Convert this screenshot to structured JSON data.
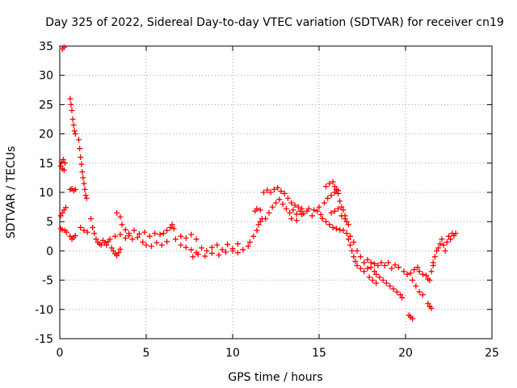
{
  "chart_data": {
    "type": "scatter",
    "title": "Day 325 of 2022, Sidereal Day-to-day VTEC variation (SDTVAR) for receiver cn19",
    "xlabel": "GPS time / hours",
    "ylabel": "SDTVAR / TECUs",
    "xlim": [
      0,
      25
    ],
    "ylim": [
      -15,
      35
    ],
    "xticks": [
      0,
      5,
      10,
      15,
      20,
      25
    ],
    "yticks": [
      -15,
      -10,
      -5,
      0,
      5,
      10,
      15,
      20,
      25,
      30,
      35
    ],
    "xtick_labels": [
      "0",
      "5",
      "10",
      "15",
      "20",
      "25"
    ],
    "ytick_labels": [
      "-15",
      "-10",
      "-5",
      "0",
      "5",
      "10",
      "15",
      "20",
      "25",
      "30",
      "35"
    ],
    "grid": true,
    "legend": "none",
    "marker": "plus",
    "color": "#ff0000",
    "series": [
      {
        "name": "SDTVAR",
        "points": [
          [
            0.05,
            14.5
          ],
          [
            0.1,
            15.2
          ],
          [
            0.15,
            14.0
          ],
          [
            0.2,
            15.6
          ],
          [
            0.25,
            13.8
          ],
          [
            0.3,
            15.0
          ],
          [
            0.15,
            34.5
          ],
          [
            0.25,
            34.8
          ],
          [
            0.05,
            6.0
          ],
          [
            0.15,
            6.5
          ],
          [
            0.25,
            7.0
          ],
          [
            0.35,
            7.4
          ],
          [
            0.05,
            3.8
          ],
          [
            0.15,
            3.6
          ],
          [
            0.3,
            3.5
          ],
          [
            0.4,
            3.2
          ],
          [
            0.6,
            26.0
          ],
          [
            0.65,
            25.0
          ],
          [
            0.7,
            24.0
          ],
          [
            0.75,
            22.5
          ],
          [
            0.8,
            21.5
          ],
          [
            0.85,
            20.5
          ],
          [
            0.9,
            20.0
          ],
          [
            1.1,
            19.0
          ],
          [
            1.15,
            17.5
          ],
          [
            1.2,
            16.0
          ],
          [
            1.25,
            14.8
          ],
          [
            1.3,
            13.5
          ],
          [
            1.35,
            12.5
          ],
          [
            1.4,
            11.5
          ],
          [
            1.45,
            10.5
          ],
          [
            1.5,
            9.5
          ],
          [
            1.55,
            9.0
          ],
          [
            0.6,
            10.5
          ],
          [
            0.7,
            10.6
          ],
          [
            0.8,
            10.3
          ],
          [
            0.9,
            10.5
          ],
          [
            0.6,
            2.5
          ],
          [
            0.7,
            2.0
          ],
          [
            0.8,
            2.3
          ],
          [
            0.9,
            2.6
          ],
          [
            1.2,
            4.0
          ],
          [
            1.4,
            3.5
          ],
          [
            1.6,
            3.2
          ],
          [
            1.8,
            5.5
          ],
          [
            1.9,
            4.0
          ],
          [
            2.0,
            3.0
          ],
          [
            2.1,
            2.0
          ],
          [
            2.2,
            1.5
          ],
          [
            2.3,
            1.2
          ],
          [
            2.4,
            1.0
          ],
          [
            2.5,
            1.8
          ],
          [
            2.6,
            1.4
          ],
          [
            2.7,
            1.0
          ],
          [
            2.8,
            1.6
          ],
          [
            2.9,
            2.0
          ],
          [
            3.0,
            0.5
          ],
          [
            3.1,
            0.0
          ],
          [
            3.2,
            -0.5
          ],
          [
            3.3,
            -0.8
          ],
          [
            3.4,
            -0.3
          ],
          [
            3.5,
            0.3
          ],
          [
            3.3,
            6.5
          ],
          [
            3.5,
            5.8
          ],
          [
            3.6,
            4.5
          ],
          [
            3.8,
            3.6
          ],
          [
            4.0,
            3.0
          ],
          [
            3.2,
            2.5
          ],
          [
            3.5,
            2.8
          ],
          [
            3.8,
            2.2
          ],
          [
            4.0,
            2.6
          ],
          [
            4.2,
            2.0
          ],
          [
            4.5,
            2.3
          ],
          [
            4.8,
            1.5
          ],
          [
            4.3,
            3.5
          ],
          [
            4.6,
            2.9
          ],
          [
            4.9,
            3.2
          ],
          [
            5.2,
            2.5
          ],
          [
            5.5,
            3.0
          ],
          [
            5.8,
            2.8
          ],
          [
            5.0,
            1.0
          ],
          [
            5.3,
            0.8
          ],
          [
            5.6,
            1.4
          ],
          [
            5.9,
            1.0
          ],
          [
            6.2,
            1.6
          ],
          [
            6.0,
            3.0
          ],
          [
            6.2,
            3.5
          ],
          [
            6.4,
            4.0
          ],
          [
            6.5,
            4.5
          ],
          [
            6.6,
            3.8
          ],
          [
            6.7,
            2.0
          ],
          [
            7.0,
            2.5
          ],
          [
            7.3,
            2.2
          ],
          [
            7.6,
            2.8
          ],
          [
            7.9,
            2.0
          ],
          [
            7.0,
            1.0
          ],
          [
            7.3,
            0.6
          ],
          [
            7.6,
            0.2
          ],
          [
            7.9,
            -0.3
          ],
          [
            8.2,
            0.5
          ],
          [
            8.5,
            0.0
          ],
          [
            8.8,
            0.6
          ],
          [
            9.1,
            1.0
          ],
          [
            9.4,
            0.2
          ],
          [
            9.7,
            1.1
          ],
          [
            10.0,
            0.4
          ],
          [
            10.3,
            1.2
          ],
          [
            7.7,
            -1.0
          ],
          [
            8.0,
            -0.6
          ],
          [
            8.4,
            -0.9
          ],
          [
            8.8,
            -0.4
          ],
          [
            9.2,
            -0.7
          ],
          [
            9.6,
            -0.2
          ],
          [
            10.0,
            0.0
          ],
          [
            10.3,
            -0.3
          ],
          [
            10.6,
            0.2
          ],
          [
            10.9,
            0.8
          ],
          [
            11.0,
            1.5
          ],
          [
            11.2,
            2.5
          ],
          [
            11.4,
            3.5
          ],
          [
            11.5,
            4.5
          ],
          [
            11.6,
            5.0
          ],
          [
            11.7,
            5.5
          ],
          [
            11.3,
            6.8
          ],
          [
            11.4,
            7.2
          ],
          [
            11.6,
            7.0
          ],
          [
            11.8,
            10.0
          ],
          [
            12.0,
            10.4
          ],
          [
            12.2,
            10.0
          ],
          [
            12.4,
            10.5
          ],
          [
            12.6,
            10.8
          ],
          [
            12.8,
            10.2
          ],
          [
            13.0,
            9.8
          ],
          [
            11.9,
            5.5
          ],
          [
            12.1,
            6.5
          ],
          [
            12.3,
            7.5
          ],
          [
            12.5,
            8.2
          ],
          [
            12.7,
            8.8
          ],
          [
            12.9,
            8.0
          ],
          [
            13.1,
            7.2
          ],
          [
            13.3,
            6.5
          ],
          [
            13.5,
            7.0
          ],
          [
            13.7,
            6.3
          ],
          [
            13.9,
            6.8
          ],
          [
            14.1,
            6.4
          ],
          [
            13.2,
            9.0
          ],
          [
            13.4,
            8.2
          ],
          [
            13.6,
            7.8
          ],
          [
            13.8,
            7.5
          ],
          [
            14.0,
            7.2
          ],
          [
            13.4,
            5.5
          ],
          [
            13.7,
            5.2
          ],
          [
            14.0,
            6.2
          ],
          [
            14.3,
            6.8
          ],
          [
            14.6,
            6.0
          ],
          [
            14.9,
            6.8
          ],
          [
            15.1,
            6.2
          ],
          [
            14.4,
            7.2
          ],
          [
            14.7,
            7.0
          ],
          [
            15.0,
            7.5
          ],
          [
            15.3,
            8.2
          ],
          [
            15.5,
            9.0
          ],
          [
            15.7,
            9.5
          ],
          [
            15.9,
            10.0
          ],
          [
            16.1,
            10.3
          ],
          [
            15.2,
            5.5
          ],
          [
            15.4,
            5.0
          ],
          [
            15.6,
            4.5
          ],
          [
            15.8,
            4.0
          ],
          [
            16.0,
            3.8
          ],
          [
            16.2,
            3.6
          ],
          [
            16.4,
            3.5
          ],
          [
            15.4,
            11.0
          ],
          [
            15.6,
            11.5
          ],
          [
            15.8,
            11.8
          ],
          [
            15.9,
            11.0
          ],
          [
            16.0,
            10.5
          ],
          [
            16.1,
            9.8
          ],
          [
            16.2,
            8.5
          ],
          [
            16.3,
            7.5
          ],
          [
            16.4,
            7.0
          ],
          [
            16.5,
            6.0
          ],
          [
            16.6,
            5.0
          ],
          [
            15.7,
            6.5
          ],
          [
            15.9,
            6.8
          ],
          [
            16.1,
            7.2
          ],
          [
            16.3,
            6.0
          ],
          [
            16.5,
            5.5
          ],
          [
            16.7,
            4.5
          ],
          [
            16.6,
            3.0
          ],
          [
            16.7,
            2.0
          ],
          [
            16.8,
            1.0
          ],
          [
            16.9,
            0.0
          ],
          [
            17.0,
            -1.0
          ],
          [
            17.1,
            -1.8
          ],
          [
            16.8,
            2.5
          ],
          [
            17.0,
            1.5
          ],
          [
            17.2,
            0.0
          ],
          [
            17.4,
            -1.0
          ],
          [
            17.6,
            -2.0
          ],
          [
            17.2,
            -2.5
          ],
          [
            17.4,
            -3.0
          ],
          [
            17.6,
            -3.5
          ],
          [
            17.8,
            -3.0
          ],
          [
            18.0,
            -2.8
          ],
          [
            18.2,
            -3.5
          ],
          [
            17.8,
            -1.5
          ],
          [
            18.0,
            -2.0
          ],
          [
            18.2,
            -2.2
          ],
          [
            18.4,
            -2.5
          ],
          [
            18.6,
            -2.0
          ],
          [
            18.8,
            -2.5
          ],
          [
            19.0,
            -2.0
          ],
          [
            19.2,
            -3.0
          ],
          [
            19.4,
            -2.4
          ],
          [
            19.6,
            -2.8
          ],
          [
            18.3,
            -4.0
          ],
          [
            18.5,
            -4.5
          ],
          [
            18.7,
            -5.0
          ],
          [
            18.9,
            -5.5
          ],
          [
            19.1,
            -6.0
          ],
          [
            19.3,
            -6.5
          ],
          [
            19.5,
            -7.0
          ],
          [
            19.7,
            -7.5
          ],
          [
            19.8,
            -8.0
          ],
          [
            17.9,
            -4.5
          ],
          [
            18.1,
            -5.0
          ],
          [
            18.3,
            -5.5
          ],
          [
            19.9,
            -3.5
          ],
          [
            20.1,
            -4.0
          ],
          [
            20.3,
            -3.8
          ],
          [
            20.5,
            -3.2
          ],
          [
            20.7,
            -2.8
          ],
          [
            20.2,
            -11.0
          ],
          [
            20.3,
            -11.3
          ],
          [
            20.4,
            -11.6
          ],
          [
            20.4,
            -5.0
          ],
          [
            20.6,
            -6.0
          ],
          [
            20.8,
            -7.0
          ],
          [
            21.0,
            -7.5
          ],
          [
            20.8,
            -3.5
          ],
          [
            21.0,
            -4.0
          ],
          [
            21.2,
            -4.2
          ],
          [
            21.3,
            -9.0
          ],
          [
            21.4,
            -9.5
          ],
          [
            21.5,
            -9.8
          ],
          [
            21.3,
            -4.8
          ],
          [
            21.4,
            -5.0
          ],
          [
            21.5,
            -3.5
          ],
          [
            21.6,
            -2.5
          ],
          [
            21.6,
            -2.0
          ],
          [
            21.7,
            -1.0
          ],
          [
            21.8,
            0.0
          ],
          [
            21.9,
            0.5
          ],
          [
            22.0,
            1.2
          ],
          [
            22.1,
            2.0
          ],
          [
            22.2,
            1.0
          ],
          [
            22.3,
            0.0
          ],
          [
            22.4,
            1.5
          ],
          [
            22.5,
            2.5
          ],
          [
            22.6,
            2.0
          ],
          [
            22.7,
            3.0
          ],
          [
            22.8,
            2.6
          ],
          [
            22.9,
            3.0
          ]
        ]
      }
    ]
  }
}
